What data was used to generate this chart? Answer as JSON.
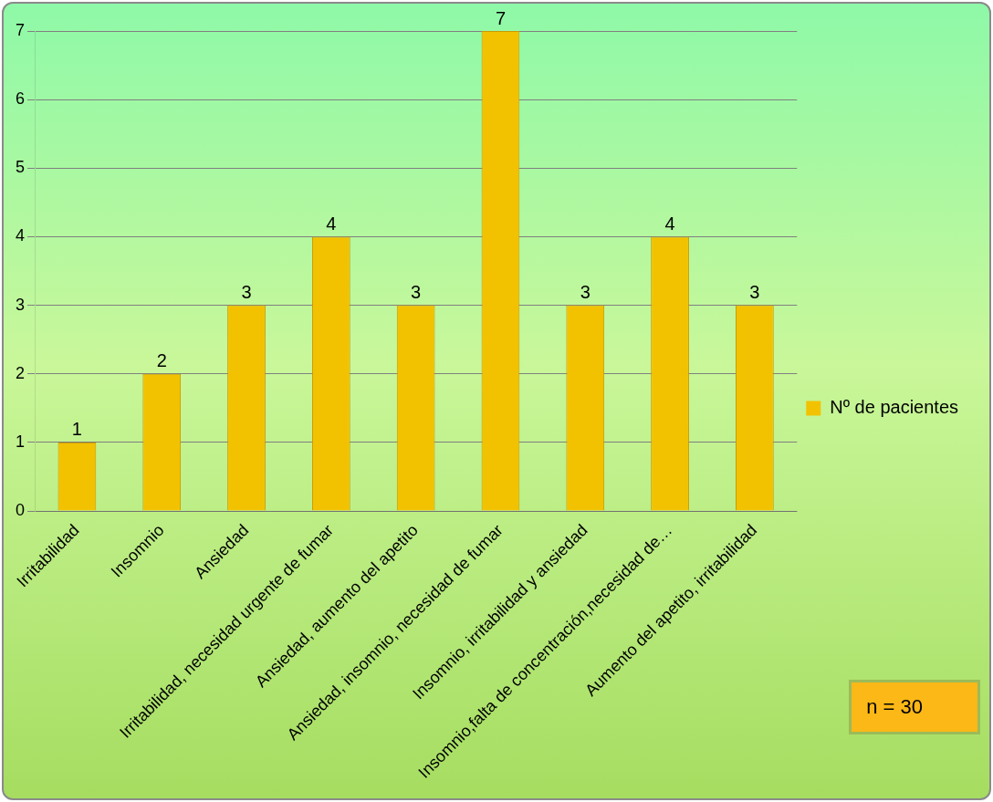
{
  "chart_data": {
    "type": "bar",
    "categories": [
      "Irritabilidad",
      "Insomnio",
      "Ansiedad",
      "Irritabilidad, necesidad urgente de fumar",
      "Ansiedad, aumento del apetito",
      "Ansiedad, insomnio, necesidad de fumar",
      "Insomnio, irritabilidad y ansiedad",
      "Insomnio,falta de concentración,necesidad de…",
      "Aumento del apetito, irritabilidad"
    ],
    "series": [
      {
        "name": "Nº de pacientes",
        "color": "#f2c200",
        "values": [
          1,
          2,
          3,
          4,
          3,
          7,
          3,
          4,
          3
        ]
      }
    ],
    "ylim": [
      0,
      7
    ],
    "yticks": [
      0,
      1,
      2,
      3,
      4,
      5,
      6,
      7
    ],
    "grid": "y",
    "legend": "right",
    "data_labels": true,
    "annotations": [
      "n = 30"
    ]
  }
}
